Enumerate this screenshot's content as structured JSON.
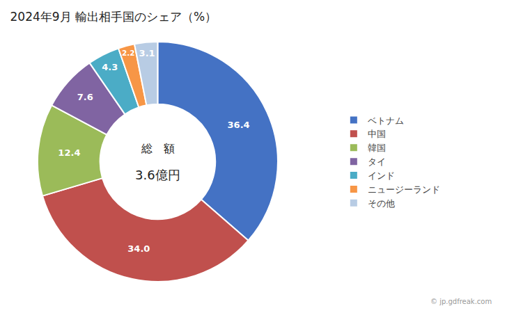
{
  "chart_data": {
    "type": "donut",
    "title": "2024年9月 輸出相手国のシェア（%）",
    "categories": [
      "ベトナム",
      "中国",
      "韓国",
      "タイ",
      "インド",
      "ニュージーランド",
      "その他"
    ],
    "values": [
      36.4,
      34.0,
      12.4,
      7.6,
      4.3,
      2.2,
      3.1
    ],
    "value_labels": [
      "36.4",
      "34.0",
      "12.4",
      "7.6",
      "4.3",
      "2.2",
      "3.1"
    ],
    "colors": [
      "#4472C4",
      "#C0504D",
      "#9BBB59",
      "#8064A2",
      "#4BACC6",
      "#F79646",
      "#B8CCE4"
    ],
    "data_labels": true,
    "legend": "right",
    "center_labels": [
      "総　額",
      "3.6億円"
    ],
    "footnote": "© jp.gdfreak.com"
  }
}
